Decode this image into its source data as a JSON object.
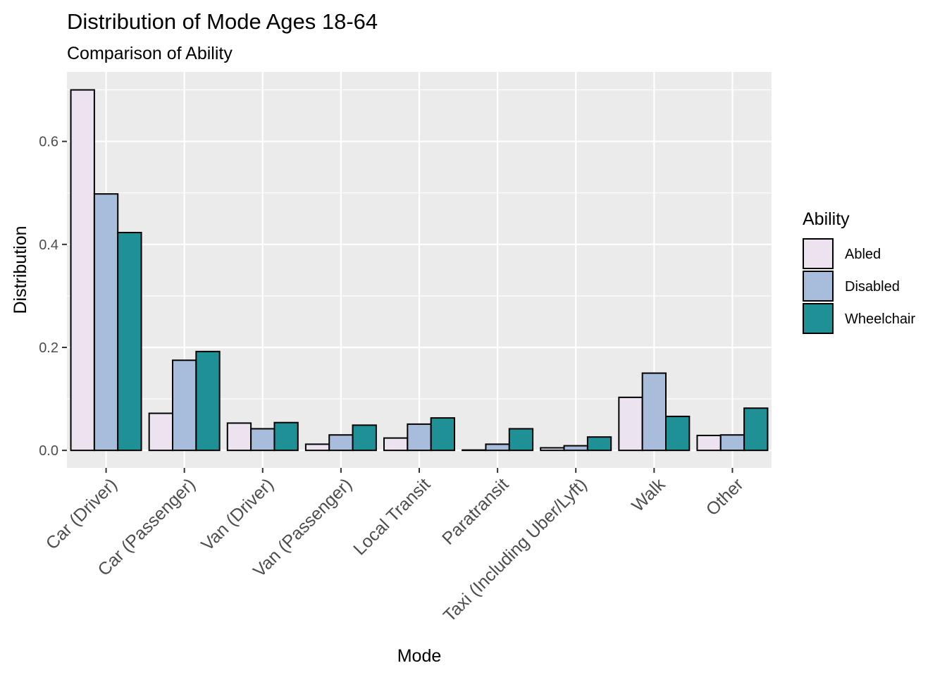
{
  "chart_data": {
    "type": "bar",
    "title": "Distribution of Mode Ages 18-64",
    "subtitle": "Comparison of Ability",
    "xlabel": "Mode",
    "ylabel": "Distribution",
    "categories": [
      "Car (Driver)",
      "Car (Passenger)",
      "Van (Driver)",
      "Van (Passenger)",
      "Local Transit",
      "Paratransit",
      "Taxi (Including Uber/Lyft)",
      "Walk",
      "Other"
    ],
    "series": [
      {
        "name": "Abled",
        "color": "#ede3f0",
        "values": [
          0.7,
          0.072,
          0.053,
          0.012,
          0.024,
          0.0,
          0.005,
          0.103,
          0.029
        ]
      },
      {
        "name": "Disabled",
        "color": "#a8bcdc",
        "values": [
          0.498,
          0.175,
          0.042,
          0.03,
          0.051,
          0.012,
          0.009,
          0.15,
          0.03
        ]
      },
      {
        "name": "Wheelchair",
        "color": "#1f9096",
        "values": [
          0.423,
          0.192,
          0.054,
          0.049,
          0.063,
          0.042,
          0.026,
          0.066,
          0.082
        ]
      }
    ],
    "ylim": [
      -0.034,
      0.735
    ],
    "yticks": [
      0.0,
      0.2,
      0.4,
      0.6
    ],
    "ytick_labels": [
      "0.0",
      "0.2",
      "0.4",
      "0.6"
    ],
    "grid": true,
    "legend": {
      "title": "Ability",
      "position": "right"
    },
    "colors": {
      "panel_background": "#ebebeb",
      "grid_major": "#ffffff",
      "bar_outline": "#000000",
      "tick_text": "#4d4d4d",
      "axis_title_text": "#000000"
    }
  }
}
